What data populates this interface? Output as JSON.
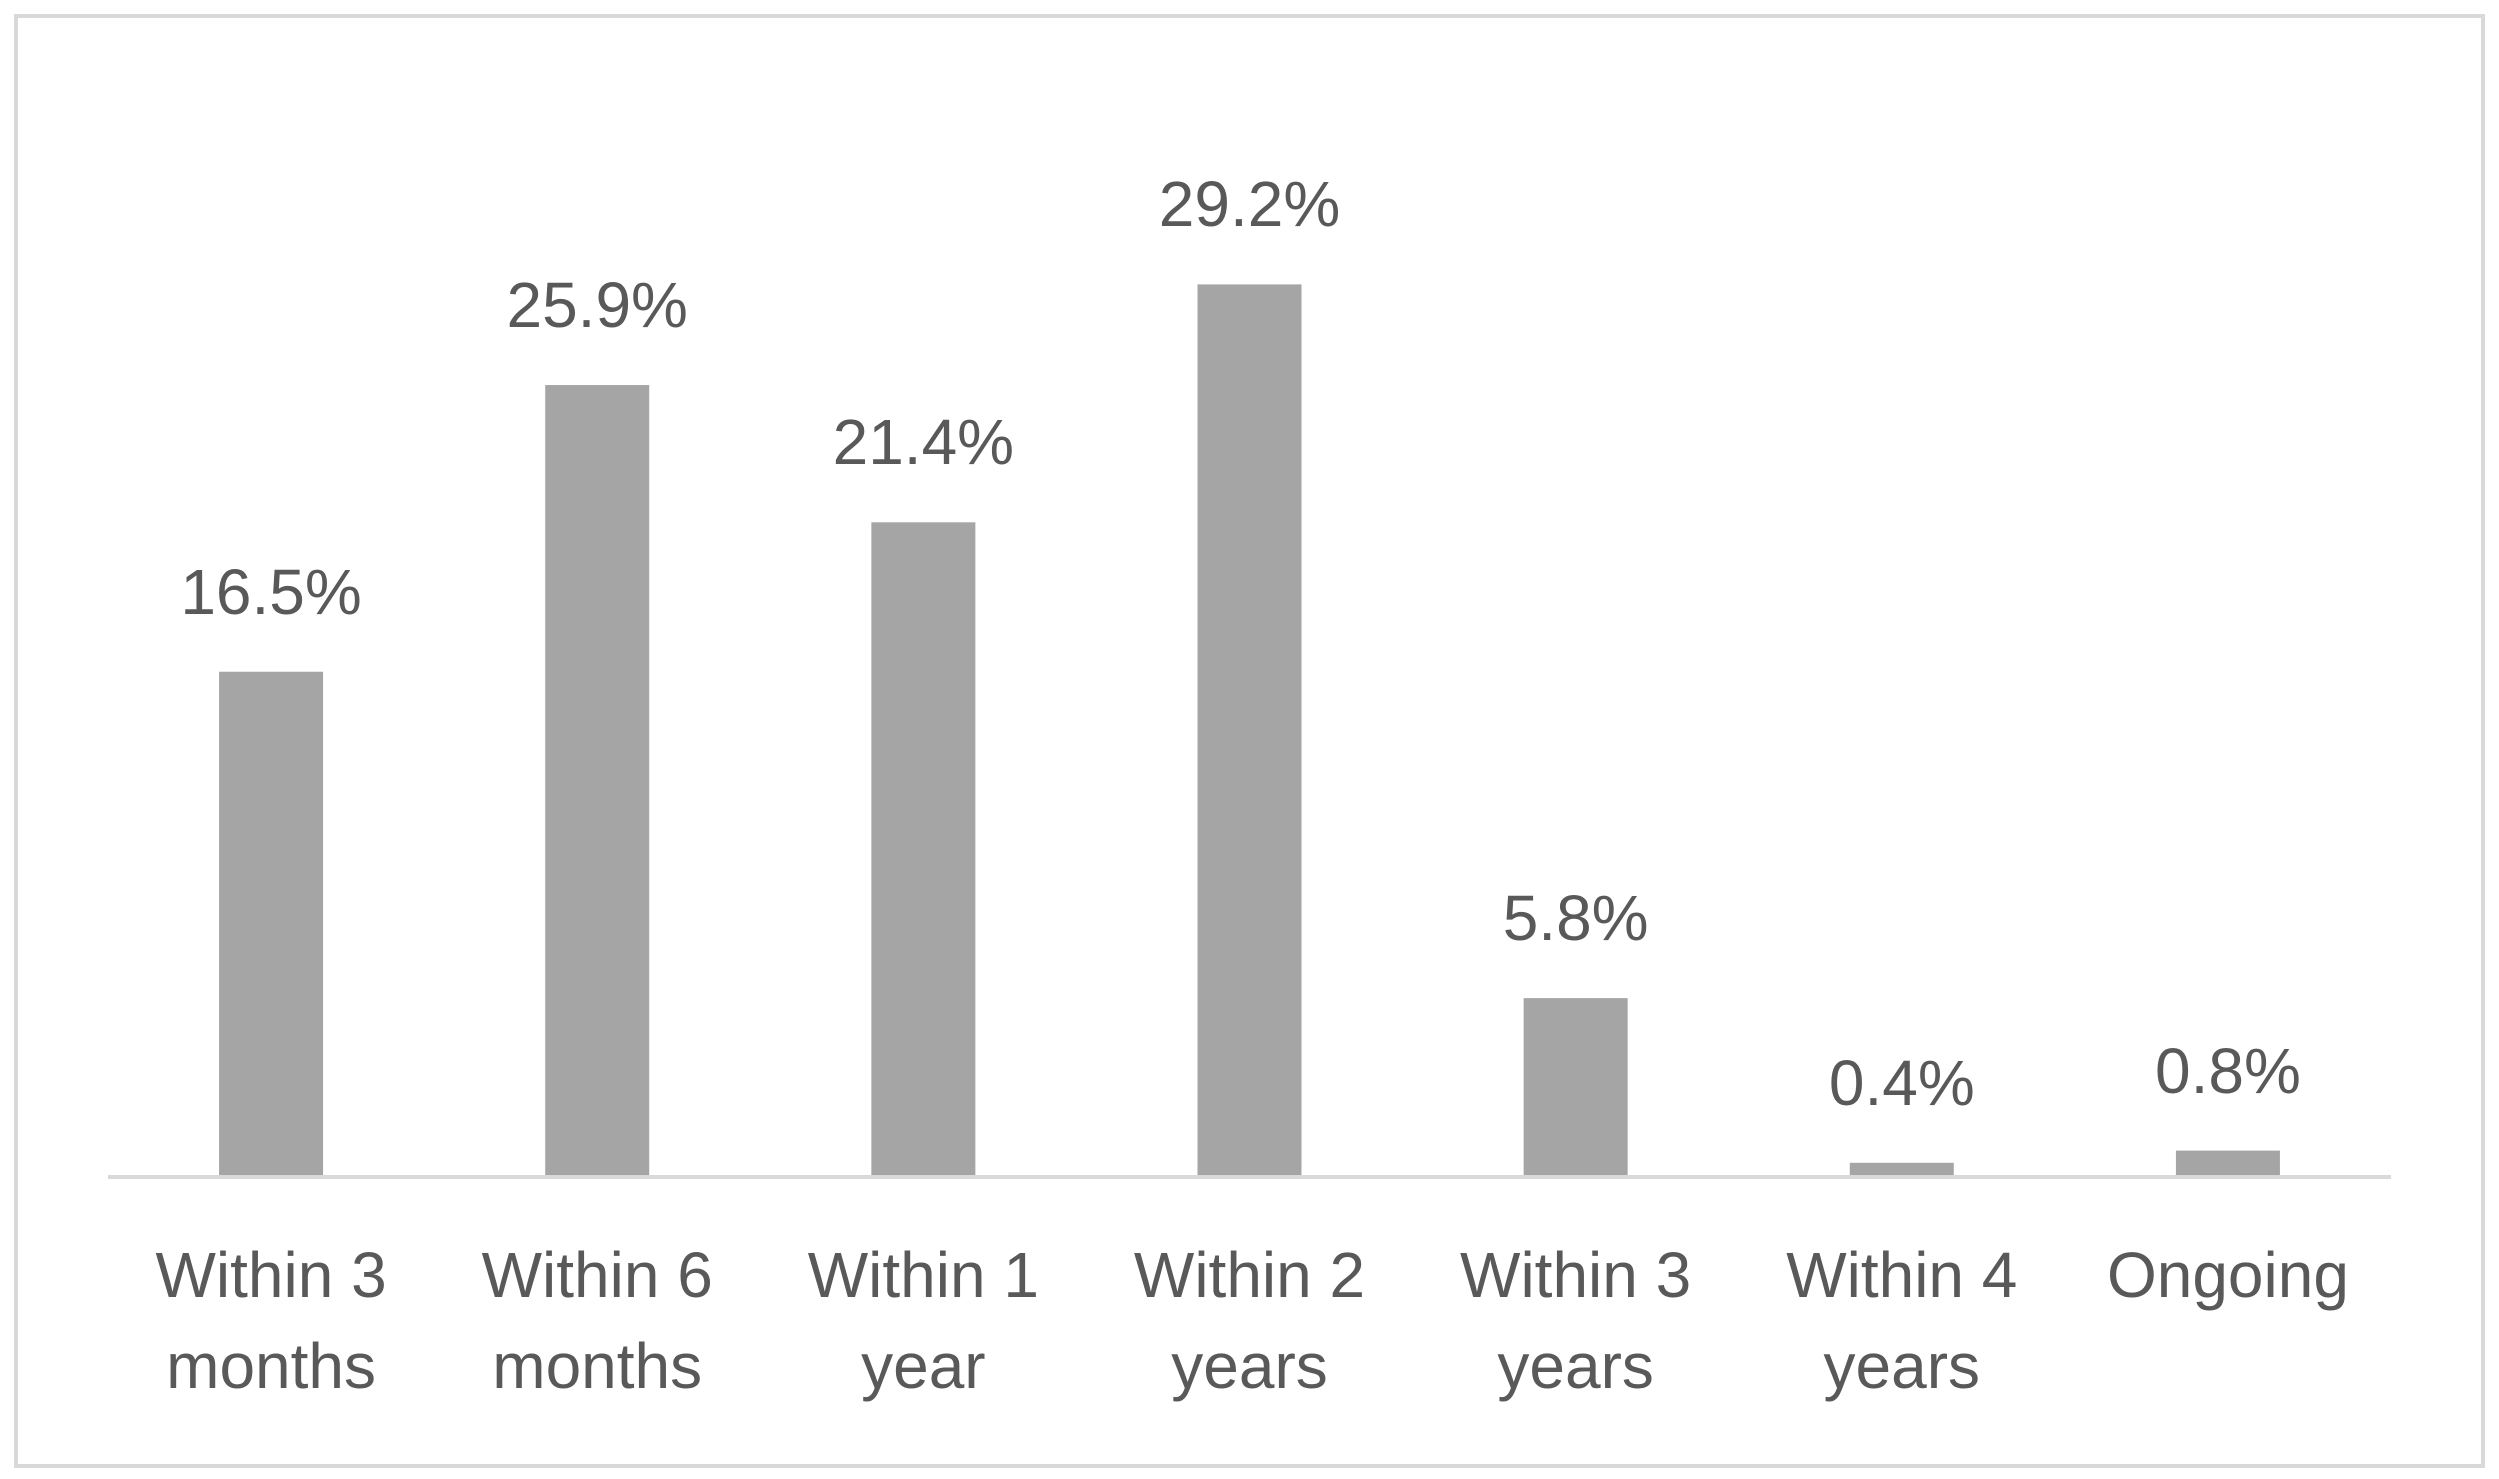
{
  "chart_data": {
    "type": "bar",
    "categories": [
      "Within 3 months",
      "Within 6 months",
      "Within 1 year",
      "Within 2 years",
      "Within 3 years",
      "Within 4 years",
      "Ongoing"
    ],
    "values": [
      16.5,
      25.9,
      21.4,
      29.2,
      5.8,
      0.4,
      0.8
    ],
    "value_labels": [
      "16.5%",
      "25.9%",
      "21.4%",
      "29.2%",
      "5.8%",
      "0.4%",
      "0.8%"
    ],
    "color": "#a5a5a5"
  }
}
